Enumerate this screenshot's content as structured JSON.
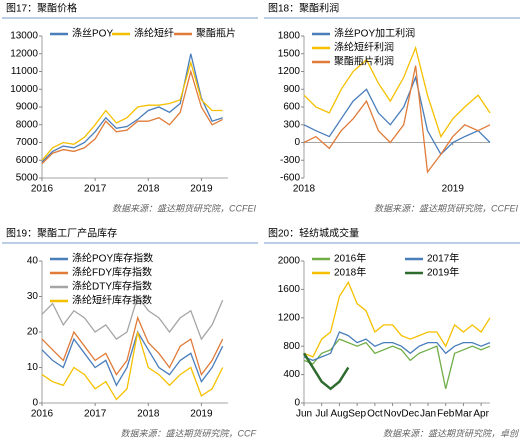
{
  "chart_data": [
    {
      "type": "line",
      "title": "图17：聚酯价格",
      "source": "数据来源：盛达期货研究院，CCFEI",
      "x": [
        2016.0,
        2016.2,
        2016.4,
        2016.6,
        2016.8,
        2017.0,
        2017.2,
        2017.4,
        2017.6,
        2017.8,
        2018.0,
        2018.2,
        2018.4,
        2018.6,
        2018.8,
        2019.0,
        2019.2,
        2019.4
      ],
      "xlim": [
        2016,
        2019.5
      ],
      "xticks": [
        2016,
        2017,
        2018,
        2019
      ],
      "ylim": [
        5000,
        13000
      ],
      "yticks": [
        5000,
        6000,
        7000,
        8000,
        9000,
        10000,
        11000,
        12000,
        13000
      ],
      "series": [
        {
          "name": "涤丝POY",
          "color": "#4a7ebb",
          "values": [
            5900,
            6500,
            6800,
            6700,
            7000,
            7600,
            8400,
            7800,
            7900,
            8300,
            8800,
            9000,
            8700,
            9200,
            12000,
            9500,
            8200,
            8400
          ]
        },
        {
          "name": "涤纶短纤",
          "color": "#f5c000",
          "values": [
            6000,
            6700,
            7000,
            6900,
            7300,
            8000,
            8800,
            8100,
            8400,
            9000,
            9100,
            9100,
            9200,
            9400,
            11500,
            9400,
            8800,
            8800
          ]
        },
        {
          "name": "聚酯瓶片",
          "color": "#e07b39",
          "values": [
            5800,
            6400,
            6600,
            6500,
            6700,
            7200,
            8200,
            7600,
            7700,
            8200,
            8200,
            8400,
            8000,
            8700,
            11000,
            9000,
            8000,
            8300
          ]
        }
      ]
    },
    {
      "type": "line",
      "title": "图18：聚酯利润",
      "source": "数据来源：盛达期货研究院，CCFEI",
      "x": [
        2018.0,
        2018.08,
        2018.17,
        2018.25,
        2018.33,
        2018.42,
        2018.5,
        2018.58,
        2018.67,
        2018.75,
        2018.83,
        2018.92,
        2019.0,
        2019.08,
        2019.17,
        2019.25
      ],
      "xlim": [
        2018,
        2019.25
      ],
      "xticks": [
        2018,
        2019
      ],
      "ylim": [
        -600,
        1800
      ],
      "yticks": [
        -600,
        -300,
        0,
        300,
        600,
        900,
        1200,
        1500,
        1800
      ],
      "series": [
        {
          "name": "涤丝POY加工利润",
          "color": "#4a7ebb",
          "values": [
            300,
            200,
            100,
            400,
            700,
            900,
            500,
            300,
            600,
            1100,
            200,
            -200,
            0,
            100,
            200,
            0
          ]
        },
        {
          "name": "涤纶短纤利润",
          "color": "#f5c000",
          "values": [
            800,
            600,
            500,
            900,
            1200,
            1400,
            1000,
            700,
            1100,
            1600,
            800,
            100,
            400,
            600,
            800,
            500
          ]
        },
        {
          "name": "聚酯瓶片利润",
          "color": "#e07b39",
          "values": [
            0,
            100,
            -100,
            200,
            400,
            700,
            200,
            0,
            300,
            1300,
            -500,
            -200,
            100,
            300,
            200,
            300
          ]
        }
      ]
    },
    {
      "type": "line",
      "title": "图19：聚酯工厂产品库存",
      "source": "数据来源：盛达期货研究院，CCF",
      "x": [
        2016.0,
        2016.2,
        2016.4,
        2016.6,
        2016.8,
        2017.0,
        2017.2,
        2017.4,
        2017.6,
        2017.8,
        2018.0,
        2018.2,
        2018.4,
        2018.6,
        2018.8,
        2019.0,
        2019.2,
        2019.4
      ],
      "xlim": [
        2016,
        2019.5
      ],
      "xticks": [
        2016,
        2017,
        2018,
        2019
      ],
      "ylim": [
        0,
        40
      ],
      "yticks": [
        0,
        10,
        20,
        30,
        40
      ],
      "series": [
        {
          "name": "涤纶POY库存指数",
          "color": "#4a7ebb",
          "values": [
            15,
            12,
            10,
            18,
            14,
            10,
            12,
            5,
            10,
            20,
            15,
            10,
            8,
            12,
            14,
            6,
            10,
            16
          ]
        },
        {
          "name": "涤纶FDY库存指数",
          "color": "#e07b39",
          "values": [
            18,
            15,
            12,
            20,
            16,
            12,
            14,
            8,
            12,
            24,
            17,
            14,
            10,
            16,
            18,
            8,
            12,
            18
          ]
        },
        {
          "name": "涤纶DTY库存指数",
          "color": "#a5a5a5",
          "values": [
            25,
            28,
            22,
            26,
            24,
            20,
            22,
            18,
            20,
            30,
            26,
            24,
            20,
            24,
            26,
            18,
            22,
            29
          ]
        },
        {
          "name": "涤纶短纤库存指数",
          "color": "#f5c000",
          "values": [
            8,
            6,
            5,
            10,
            8,
            4,
            6,
            1,
            4,
            20,
            10,
            8,
            5,
            8,
            10,
            2,
            4,
            10
          ]
        }
      ]
    },
    {
      "type": "line",
      "title": "图20：轻纺城成交量",
      "source": "数据来源：盛达期货研究院，卓创",
      "x": [
        0,
        0.5,
        1,
        1.5,
        2,
        2.5,
        3,
        3.5,
        4,
        4.5,
        5,
        5.5,
        6,
        6.5,
        7,
        7.5,
        8,
        8.5,
        9,
        9.5,
        10,
        10.5
      ],
      "xlim": [
        0,
        10.5
      ],
      "xticks": [
        {
          "value": 0,
          "label": "Jun"
        },
        {
          "value": 1,
          "label": "Jul"
        },
        {
          "value": 2,
          "label": "Aug"
        },
        {
          "value": 3,
          "label": "Sep"
        },
        {
          "value": 4,
          "label": "Oct"
        },
        {
          "value": 5,
          "label": "Nov"
        },
        {
          "value": 6,
          "label": "Dec"
        },
        {
          "value": 7,
          "label": "Jan"
        },
        {
          "value": 8,
          "label": "Feb"
        },
        {
          "value": 9,
          "label": "Mar"
        },
        {
          "value": 10,
          "label": "Apr"
        }
      ],
      "ylim": [
        0,
        2000
      ],
      "yticks": [
        0,
        400,
        800,
        1200,
        1600,
        2000
      ],
      "series": [
        {
          "name": "2016年",
          "color": "#70ad47",
          "values": [
            600,
            550,
            700,
            750,
            900,
            850,
            800,
            850,
            700,
            750,
            800,
            750,
            600,
            700,
            750,
            800,
            200,
            700,
            750,
            800,
            750,
            800
          ]
        },
        {
          "name": "2017年",
          "color": "#4a7ebb",
          "values": [
            650,
            600,
            650,
            700,
            1000,
            950,
            850,
            900,
            800,
            850,
            850,
            800,
            700,
            800,
            850,
            850,
            700,
            800,
            850,
            850,
            800,
            850
          ]
        },
        {
          "name": "2018年",
          "color": "#f5c000",
          "values": [
            700,
            650,
            900,
            1000,
            1500,
            1700,
            1400,
            1300,
            1000,
            1100,
            1100,
            950,
            900,
            950,
            1000,
            1000,
            800,
            1100,
            1000,
            1100,
            1000,
            1200
          ]
        },
        {
          "name": "2019年",
          "color": "#2e6b2e",
          "values": [
            700,
            500,
            300,
            200,
            300,
            500,
            null,
            null,
            null,
            null,
            null,
            null,
            null,
            null,
            null,
            null,
            null,
            null,
            null,
            null,
            null,
            null
          ]
        }
      ]
    }
  ]
}
